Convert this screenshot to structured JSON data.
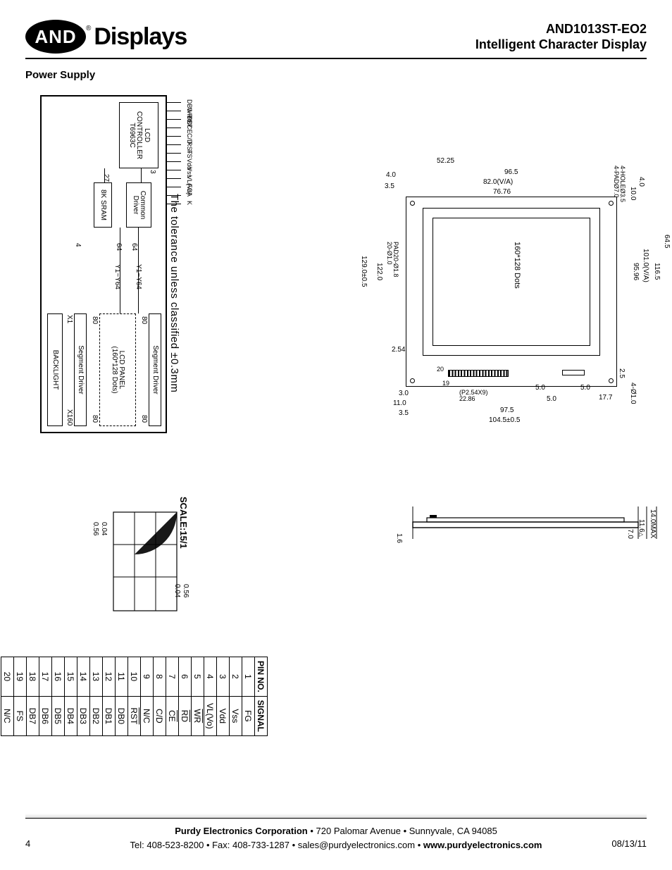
{
  "header": {
    "logo_text": "AND",
    "logo_word": "Displays",
    "product_code": "AND1013ST-EO2",
    "product_subtitle": "Intelligent Character Display"
  },
  "section_title": "Power Supply",
  "tolerance_note": "The tolerance unless classified ±0.3mm",
  "scale_note": "SCALE:15/1",
  "block_diagram": {
    "pins_top": [
      "DB0~DB7",
      "WR",
      "RD",
      "CE",
      "C/D",
      "RST",
      "FS",
      "Vdd",
      "Vss",
      "VL(Vo)",
      "FG",
      "A",
      "K"
    ],
    "controller_label": "LCD\nCONTROLLER\nT6963C",
    "common_driver": "Common\nDriver",
    "sram": "8K SRAM",
    "segment_driver": "Segment Driver",
    "lcd_panel": "LCD PANEL\n(160*128 Dots)",
    "backlight": "BACKLIGHT",
    "bus3": "3",
    "bus27": "27",
    "bus4": "4",
    "bus64": "64",
    "bus80": "80",
    "y_label": "Y1~Y64",
    "x_label_lo": "X1",
    "x_label_hi": "X160"
  },
  "mech": {
    "hole_note": "4-HOLEØ3.5\n4-PADØ7.0",
    "corner_hole": "4-Ø1.0",
    "pitch_note": "(P2.54X9)\n22.86",
    "pad_note": "PAD20-Ø1.8\n20-Ø1.0",
    "active_area_label": "160*128 Dots",
    "dims": {
      "top_52_25": "52.25",
      "top_96_5": "96.5",
      "top_82_0": "82.0(V/A)",
      "top_76_76": "76.76",
      "left_4_0": "4.0",
      "left_3_5": "3.5",
      "left_129": "129.0±0.5",
      "left_122": "122.0",
      "left_2_54": "2.54",
      "left_3_0": "3.0",
      "left_11_0": "11.0",
      "left_3_5b": "3.5",
      "left_19": "19",
      "left_20": "20",
      "right_4_0": "4.0",
      "right_10_0": "10.0",
      "right_64_5": "64.5",
      "right_116_5": "116.5",
      "right_101": "101.0(V/A)",
      "right_95_96": "95.96",
      "right_2_5": "2.5",
      "bot_5_0a": "5.0",
      "bot_5_0b": "5.0",
      "bot_5_0c": "5.0",
      "bot_17_7": "17.7",
      "bot_97_5": "97.5",
      "bot_104_5": "104.5±0.5"
    }
  },
  "dot_detail": {
    "w1": "0.56",
    "w2": "0.04",
    "h1": "0.04",
    "h2": "0.56"
  },
  "side_view": {
    "t1": "1.6",
    "t2": "7.0",
    "t3": "11.6",
    "t4": "14.0MAX",
    "triangle": "△"
  },
  "pin_table": {
    "headers": [
      "PIN NO.",
      "SIGNAL"
    ],
    "rows": [
      {
        "no": "1",
        "sig": "FG",
        "over": false
      },
      {
        "no": "2",
        "sig": "Vss",
        "over": false
      },
      {
        "no": "3",
        "sig": "Vdd",
        "over": false
      },
      {
        "no": "4",
        "sig": "VL(Vo)",
        "over": false
      },
      {
        "no": "5",
        "sig": "WR",
        "over": true
      },
      {
        "no": "6",
        "sig": "RD",
        "over": true
      },
      {
        "no": "7",
        "sig": "CE",
        "over": true
      },
      {
        "no": "8",
        "sig": "C/D",
        "over": false
      },
      {
        "no": "9",
        "sig": "N/C",
        "over": false
      },
      {
        "no": "10",
        "sig": "RST",
        "over": true
      },
      {
        "no": "11",
        "sig": "DB0",
        "over": false
      },
      {
        "no": "12",
        "sig": "DB1",
        "over": false
      },
      {
        "no": "13",
        "sig": "DB2",
        "over": false
      },
      {
        "no": "14",
        "sig": "DB3",
        "over": false
      },
      {
        "no": "15",
        "sig": "DB4",
        "over": false
      },
      {
        "no": "16",
        "sig": "DB5",
        "over": false
      },
      {
        "no": "17",
        "sig": "DB6",
        "over": false
      },
      {
        "no": "18",
        "sig": "DB7",
        "over": false
      },
      {
        "no": "19",
        "sig": "FS",
        "over": false
      },
      {
        "no": "20",
        "sig": "N/C",
        "over": false
      }
    ]
  },
  "footer": {
    "line1_company": "Purdy Electronics Corporation",
    "line1_rest": "  •  720 Palomar Avenue  •  Sunnyvale,  CA 94085",
    "line2_a": "Tel: 408-523-8200  •  Fax: 408-733-1287  •  sales@purdyelectronics.com  •  ",
    "line2_site": "www.purdyelectronics.com",
    "page_number": "4",
    "page_date": "08/13/11"
  }
}
